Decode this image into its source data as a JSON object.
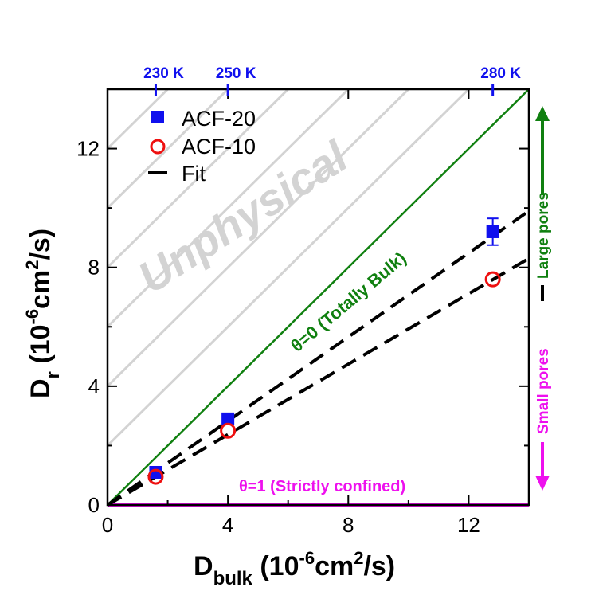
{
  "chart_data": {
    "type": "scatter",
    "xlabel_main": "D",
    "xlabel_sub": "bulk",
    "xlabel_rest": " (10",
    "xlabel_exp": "-6",
    "xlabel_unit": "cm",
    "xlabel_exp2": "2",
    "xlabel_end": "/s)",
    "ylabel_main": "D",
    "ylabel_sub": "r",
    "ylabel_rest": " (10",
    "ylabel_exp": "-6",
    "ylabel_unit": "cm",
    "ylabel_exp2": "2",
    "ylabel_end": "/s)",
    "xlim": [
      0,
      14
    ],
    "ylim": [
      0,
      14
    ],
    "x_ticks": [
      0,
      4,
      8,
      12
    ],
    "y_ticks": [
      0,
      4,
      8,
      12
    ],
    "x_tick_labels": [
      "0",
      "4",
      "8",
      "12"
    ],
    "y_tick_labels": [
      "0",
      "4",
      "8",
      "12"
    ],
    "top_axis": {
      "ticks": [
        {
          "x": 1.6,
          "label": "230 K"
        },
        {
          "x": 4.0,
          "label": "250 K"
        },
        {
          "x": 12.8,
          "label": "280 K"
        }
      ]
    },
    "series": [
      {
        "name": "ACF-20",
        "marker": "square",
        "color": "#1010ee",
        "points": [
          {
            "x": 1.6,
            "y": 1.1,
            "err": 0.1
          },
          {
            "x": 4.0,
            "y": 2.9,
            "err": 0.05
          },
          {
            "x": 12.8,
            "y": 9.2,
            "err": 0.45
          }
        ]
      },
      {
        "name": "ACF-10",
        "marker": "circle-open",
        "color": "#ee1010",
        "points": [
          {
            "x": 1.6,
            "y": 0.95
          },
          {
            "x": 4.0,
            "y": 2.5
          },
          {
            "x": 12.8,
            "y": 7.6
          }
        ]
      }
    ],
    "fit_lines": [
      {
        "name": "Fit",
        "x0": 0,
        "y0": 0,
        "x1": 14,
        "y1": 9.9
      },
      {
        "x0": 0,
        "y0": 0,
        "x1": 14,
        "y1": 8.3
      }
    ],
    "reference_lines": [
      {
        "label": "θ=0  (Totally Bulk)",
        "x0": 0,
        "y0": 0,
        "x1": 14,
        "y1": 14,
        "color": "#108010"
      },
      {
        "label": "θ=1 (Strictly confined)",
        "x0": 0,
        "y0": 0,
        "x1": 14,
        "y1": 0,
        "color": "#ee10ee"
      }
    ],
    "region_label": "Unphysical",
    "hatch_offsets": [
      2,
      4,
      6,
      8,
      10,
      12
    ],
    "hatch_color": "#d3d3d3",
    "legend_placement": "top-left",
    "side_annotation": {
      "top": "Large pores",
      "bottom": "Small pores",
      "top_color": "#108010",
      "bottom_color": "#ee10ee"
    }
  }
}
